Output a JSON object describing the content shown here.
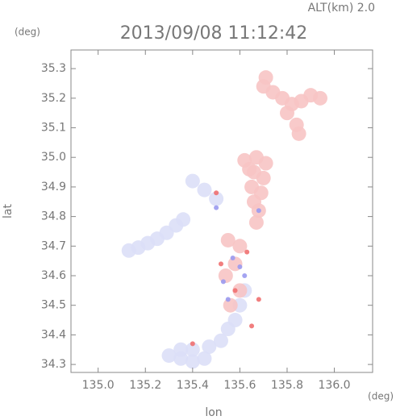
{
  "chart_data": {
    "type": "scatter",
    "title": "2013/09/08 11:12:42",
    "annotation": "ALT(km)  2.0",
    "y_unit": "(deg)",
    "x_unit": "(deg)",
    "x_label": "lon",
    "y_label": "lat",
    "xlim": [
      134.885,
      136.162
    ],
    "ylim": [
      34.273,
      35.363
    ],
    "xticks": [
      {
        "value": 135.0,
        "label": "135.0"
      },
      135.2,
      135.4,
      135.6,
      135.8,
      {
        "value": 136.0,
        "label": "136.0"
      }
    ],
    "yticks": [
      34.3,
      34.4,
      34.5,
      34.6,
      34.7,
      34.8,
      34.9,
      {
        "value": 35.0,
        "label": "35.0"
      },
      35.1,
      35.2,
      35.3
    ],
    "grid": false,
    "series": [
      {
        "color": "#dcdff7",
        "x": [
          135.13,
          135.17,
          135.21,
          135.25,
          135.29,
          135.33,
          135.36,
          135.4,
          135.45,
          135.5,
          135.3,
          135.35,
          135.4,
          135.45,
          135.4,
          135.47,
          135.52,
          135.55,
          135.58,
          135.35,
          135.6,
          135.62
        ],
        "values": [
          34.685,
          34.695,
          34.71,
          34.725,
          34.745,
          34.77,
          34.79,
          34.92,
          34.89,
          34.86,
          34.33,
          34.32,
          34.31,
          34.32,
          34.35,
          34.36,
          34.38,
          34.42,
          34.45,
          34.35,
          34.5,
          34.55
        ]
      },
      {
        "color": "#f7c4c4",
        "x": [
          135.7,
          135.74,
          135.78,
          135.82,
          135.86,
          135.9,
          135.94,
          135.8,
          135.84,
          135.85,
          135.71,
          135.62,
          135.67,
          135.71,
          135.66,
          135.7,
          135.65,
          135.69,
          135.66,
          135.68,
          135.67,
          135.64,
          135.55,
          135.6,
          135.58,
          135.54,
          135.6,
          135.56
        ],
        "values": [
          35.24,
          35.22,
          35.2,
          35.18,
          35.19,
          35.21,
          35.2,
          35.15,
          35.11,
          35.08,
          35.27,
          34.99,
          35.0,
          34.98,
          34.95,
          34.93,
          34.9,
          34.88,
          34.85,
          34.82,
          34.78,
          34.96,
          34.72,
          34.7,
          34.64,
          34.6,
          34.55,
          34.5
        ]
      },
      {
        "color": "#9a9af0",
        "x": [
          135.57,
          135.6,
          135.53,
          135.62,
          135.5,
          135.68,
          135.55
        ],
        "values": [
          34.66,
          34.63,
          34.58,
          34.6,
          34.83,
          34.82,
          34.52
        ]
      },
      {
        "color": "#f07070",
        "x": [
          135.52,
          135.63,
          135.58,
          135.5,
          135.68,
          135.65,
          135.4
        ],
        "values": [
          34.64,
          34.68,
          34.55,
          34.88,
          34.52,
          34.43,
          34.37
        ]
      }
    ]
  }
}
